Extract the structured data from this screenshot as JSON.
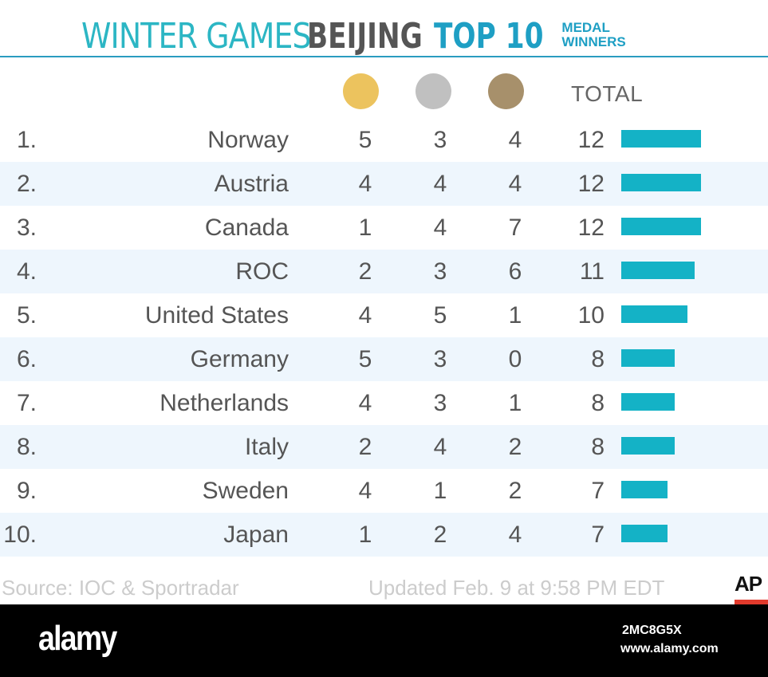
{
  "header": {
    "part1": "WINTER GAMES",
    "part2": "BEIJING",
    "part3": "TOP 10",
    "part4_line1": "MEDAL",
    "part4_line2": "WINNERS"
  },
  "colors": {
    "gold": "#ecc35e",
    "silver": "#c0c0c0",
    "bronze": "#a7906b",
    "bar": "#14b2c6",
    "accent": "#2cb6c4"
  },
  "columns": {
    "gold_icon": "gold-medal-icon",
    "silver_icon": "silver-medal-icon",
    "bronze_icon": "bronze-medal-icon",
    "total": "TOTAL"
  },
  "chart_data": {
    "type": "table",
    "title": "WINTER GAMES BEIJING TOP 10 MEDAL WINNERS",
    "columns": [
      "",
      "",
      "gold",
      "silver",
      "bronze",
      "TOTAL"
    ],
    "rows": [
      {
        "rank": "1.",
        "country": "Norway",
        "gold": 5,
        "silver": 3,
        "bronze": 4,
        "total": 12
      },
      {
        "rank": "2.",
        "country": "Austria",
        "gold": 4,
        "silver": 4,
        "bronze": 4,
        "total": 12
      },
      {
        "rank": "3.",
        "country": "Canada",
        "gold": 1,
        "silver": 4,
        "bronze": 7,
        "total": 12
      },
      {
        "rank": "4.",
        "country": "ROC",
        "gold": 2,
        "silver": 3,
        "bronze": 6,
        "total": 11
      },
      {
        "rank": "5.",
        "country": "United States",
        "gold": 4,
        "silver": 5,
        "bronze": 1,
        "total": 10
      },
      {
        "rank": "6.",
        "country": "Germany",
        "gold": 5,
        "silver": 3,
        "bronze": 0,
        "total": 8
      },
      {
        "rank": "7.",
        "country": "Netherlands",
        "gold": 4,
        "silver": 3,
        "bronze": 1,
        "total": 8
      },
      {
        "rank": "8.",
        "country": "Italy",
        "gold": 2,
        "silver": 4,
        "bronze": 2,
        "total": 8
      },
      {
        "rank": "9.",
        "country": "Sweden",
        "gold": 4,
        "silver": 1,
        "bronze": 2,
        "total": 7
      },
      {
        "rank": "10.",
        "country": "Japan",
        "gold": 1,
        "silver": 2,
        "bronze": 4,
        "total": 7
      }
    ]
  },
  "footer": {
    "source": "Source: IOC & Sportradar",
    "updated": "Updated Feb. 9 at 9:58 PM EDT",
    "credit": "AP"
  },
  "stock_banner": {
    "logo": "alamy",
    "image_id": "2MC8G5X",
    "url": "www.alamy.com"
  }
}
